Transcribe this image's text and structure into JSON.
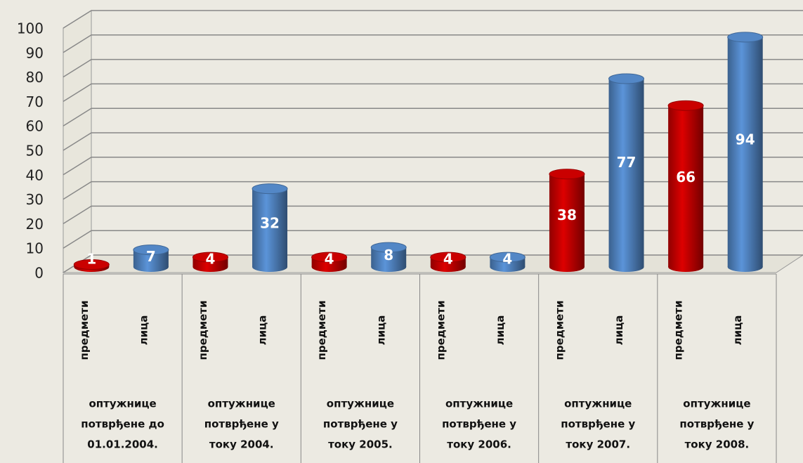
{
  "chart_data": {
    "type": "bar3d",
    "categories": [
      [
        "оптужнице",
        "потврђене до",
        "01.01.2004."
      ],
      [
        "оптужнице",
        "потврђене у",
        "току 2004."
      ],
      [
        "оптужнице",
        "потврђене у",
        "току  2005."
      ],
      [
        "оптужнице",
        "потврђене у",
        "току  2006."
      ],
      [
        "оптужнице",
        "потврђене у",
        "току  2007."
      ],
      [
        "оптужнице",
        "потврђене у",
        "току  2008."
      ]
    ],
    "series": [
      {
        "name": "предмети",
        "color": "#c00000",
        "values": [
          1,
          4,
          4,
          4,
          38,
          66
        ]
      },
      {
        "name": "лица",
        "color": "#4f81bd",
        "values": [
          7,
          32,
          8,
          4,
          77,
          94
        ]
      }
    ],
    "ylim": [
      0,
      100
    ],
    "yticks": [
      0,
      10,
      20,
      30,
      40,
      50,
      60,
      70,
      80,
      90,
      100
    ],
    "grid": true
  }
}
